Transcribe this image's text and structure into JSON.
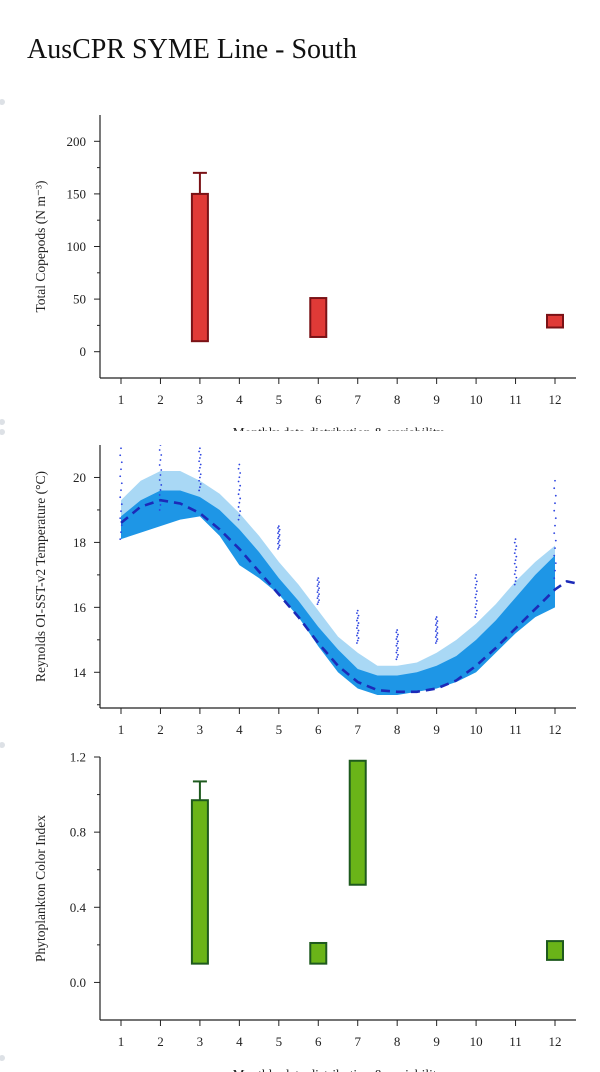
{
  "title": "AusCPR SYME Line - South",
  "colors": {
    "copepod_fill": "#e03a37",
    "copepod_stroke": "#7a1216",
    "phyto_fill": "#6ab418",
    "phyto_stroke": "#1e5a1e",
    "band_light": "#a9d8f5",
    "band_dark": "#1e96e6",
    "mean_line": "#1c2ab8",
    "points": "#2d44e0"
  },
  "chart_data": [
    {
      "type": "bar",
      "ylabel": "Total Copepods (N m⁻³)",
      "xlabel": "Monthly data distribution & variability",
      "x_ticks": [
        1,
        2,
        3,
        4,
        5,
        6,
        7,
        8,
        9,
        10,
        11,
        12
      ],
      "y_ticks": [
        0,
        50,
        100,
        150,
        200
      ],
      "ylim": [
        -25,
        225
      ],
      "boxes": [
        {
          "month": 3,
          "low": 10,
          "high": 150,
          "whisker": 170
        },
        {
          "month": 6,
          "low": 14,
          "high": 51
        },
        {
          "month": 12,
          "low": 23,
          "high": 35
        }
      ]
    },
    {
      "type": "area",
      "ylabel": "Reynolds OI-SST-v2 Temperature (°C)",
      "x_ticks": [
        1,
        2,
        3,
        4,
        5,
        6,
        7,
        8,
        9,
        10,
        11,
        12
      ],
      "y_ticks": [
        14,
        16,
        18,
        20
      ],
      "ylim": [
        12.9,
        21.0
      ],
      "bands": [
        {
          "name": "light",
          "x": [
            1,
            1.5,
            2,
            2.5,
            3,
            3.5,
            4,
            4.5,
            5,
            5.5,
            6,
            6.5,
            7,
            7.5,
            8,
            8.5,
            9,
            9.5,
            10,
            10.5,
            11,
            11.5,
            12
          ],
          "lower": [
            18.7,
            19.0,
            19.1,
            19.1,
            18.9,
            18.5,
            17.9,
            17.2,
            16.5,
            15.8,
            15.0,
            14.3,
            13.7,
            13.5,
            13.5,
            13.6,
            13.8,
            14.1,
            14.6,
            15.2,
            15.9,
            16.6,
            17.2
          ],
          "upper": [
            19.3,
            19.9,
            20.2,
            20.2,
            19.9,
            19.5,
            18.9,
            18.2,
            17.4,
            16.7,
            15.9,
            15.1,
            14.6,
            14.2,
            14.2,
            14.3,
            14.6,
            15.0,
            15.5,
            16.1,
            16.8,
            17.4,
            17.9
          ]
        },
        {
          "name": "dark",
          "x": [
            1,
            1.5,
            2,
            2.5,
            3,
            3.5,
            4,
            4.5,
            5,
            5.5,
            6,
            6.5,
            7,
            7.5,
            8,
            8.5,
            9,
            9.5,
            10,
            10.5,
            11,
            11.5,
            12
          ],
          "lower": [
            18.1,
            18.3,
            18.5,
            18.7,
            18.8,
            18.2,
            17.3,
            16.9,
            16.4,
            15.7,
            14.8,
            14.0,
            13.5,
            13.3,
            13.3,
            13.4,
            13.5,
            13.7,
            14.0,
            14.6,
            15.2,
            15.7,
            16.0
          ],
          "upper": [
            18.8,
            19.3,
            19.6,
            19.6,
            19.4,
            19.0,
            18.4,
            17.7,
            16.9,
            16.2,
            15.4,
            14.7,
            14.1,
            13.9,
            13.9,
            14.0,
            14.2,
            14.5,
            15.0,
            15.6,
            16.3,
            17.0,
            17.6
          ]
        }
      ],
      "mean_line": {
        "x": [
          1,
          1.5,
          2,
          2.5,
          3,
          3.5,
          4,
          4.5,
          5,
          5.5,
          6,
          6.5,
          7,
          7.5,
          8,
          8.5,
          9,
          9.5,
          10,
          10.5,
          11,
          11.5,
          12,
          12.3,
          12.5
        ],
        "y": [
          18.6,
          19.1,
          19.3,
          19.2,
          18.9,
          18.4,
          17.8,
          17.1,
          16.4,
          15.7,
          14.9,
          14.2,
          13.7,
          13.45,
          13.4,
          13.4,
          13.5,
          13.75,
          14.2,
          14.75,
          15.35,
          15.95,
          16.55,
          16.8,
          16.75
        ]
      },
      "points": [
        {
          "month": 1,
          "min": 18.1,
          "max": 20.9
        },
        {
          "month": 2,
          "min": 19.0,
          "max": 21.0
        },
        {
          "month": 3,
          "min": 19.6,
          "max": 20.9
        },
        {
          "month": 4,
          "min": 18.7,
          "max": 20.4
        },
        {
          "month": 5,
          "min": 17.8,
          "max": 18.5
        },
        {
          "month": 6,
          "min": 16.1,
          "max": 16.9
        },
        {
          "month": 7,
          "min": 14.9,
          "max": 15.9
        },
        {
          "month": 8,
          "min": 14.4,
          "max": 15.3
        },
        {
          "month": 9,
          "min": 14.9,
          "max": 15.7
        },
        {
          "month": 10,
          "min": 15.7,
          "max": 17.0
        },
        {
          "month": 11,
          "min": 16.7,
          "max": 18.1
        },
        {
          "month": 12,
          "min": 16.9,
          "max": 19.9
        }
      ]
    },
    {
      "type": "bar",
      "ylabel": "Phytoplankton Color Index",
      "xlabel": "Monthly data distribution & variability",
      "x_ticks": [
        1,
        2,
        3,
        4,
        5,
        6,
        7,
        8,
        9,
        10,
        11,
        12
      ],
      "y_ticks": [
        0.0,
        0.4,
        0.8,
        1.2
      ],
      "y_tick_labels": [
        "0.0",
        "0.4",
        "0.8",
        "1.2"
      ],
      "ylim": [
        -0.2,
        1.2
      ],
      "boxes": [
        {
          "month": 3,
          "low": 0.1,
          "high": 0.97,
          "whisker": 1.07
        },
        {
          "month": 6,
          "low": 0.1,
          "high": 0.21
        },
        {
          "month": 7,
          "low": 0.52,
          "high": 1.18
        },
        {
          "month": 12,
          "low": 0.12,
          "high": 0.22
        }
      ]
    }
  ]
}
